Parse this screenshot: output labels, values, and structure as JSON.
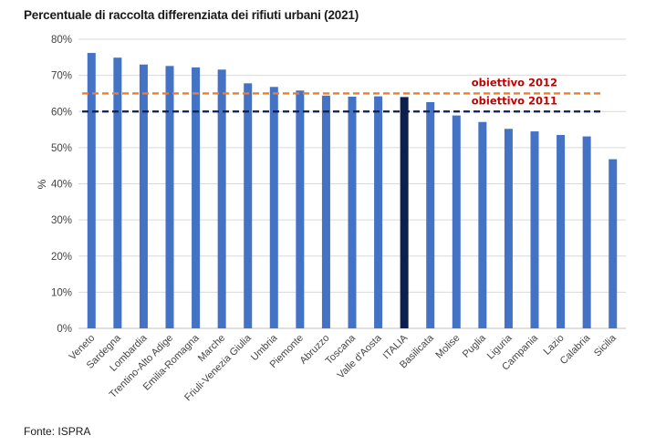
{
  "chart_data": {
    "type": "bar",
    "title": "Percentuale di raccolta differenziata dei rifiuti urbani (2021)",
    "ylabel": "%",
    "xlabel": "",
    "ylim": [
      0,
      80
    ],
    "yticks": [
      0,
      10,
      20,
      30,
      40,
      50,
      60,
      70,
      80
    ],
    "ytick_labels": [
      "0%",
      "10%",
      "20%",
      "30%",
      "40%",
      "50%",
      "60%",
      "70%",
      "80%"
    ],
    "grid": true,
    "categories": [
      "Veneto",
      "Sardegna",
      "Lombardia",
      "Trentino-Alto Adige",
      "Emilia-Romagna",
      "Marche",
      "Friuli-Venezia Giulia",
      "Umbria",
      "Piemonte",
      "Abruzzo",
      "Toscana",
      "Valle d'Aosta",
      "ITALIA",
      "Basilicata",
      "Molise",
      "Puglia",
      "Liguria",
      "Campania",
      "Lazio",
      "Calabria",
      "Sicilia"
    ],
    "values": [
      76.2,
      74.9,
      73.0,
      72.6,
      72.2,
      71.6,
      67.8,
      66.8,
      65.8,
      64.4,
      64.1,
      64.2,
      64.0,
      62.6,
      58.9,
      57.1,
      55.2,
      54.5,
      53.5,
      53.1,
      46.8
    ],
    "highlight_category": "ITALIA",
    "bar_color": "#4472c4",
    "highlight_color": "#0d1f4d",
    "reference_lines": [
      {
        "label": "obiettivo 2012",
        "value": 65,
        "color": "#ed7d31",
        "label_color": "#c00000"
      },
      {
        "label": "obiettivo 2011",
        "value": 60,
        "color": "#0d1f4d",
        "label_color": "#c00000"
      }
    ],
    "source": "Fonte: ISPRA"
  }
}
